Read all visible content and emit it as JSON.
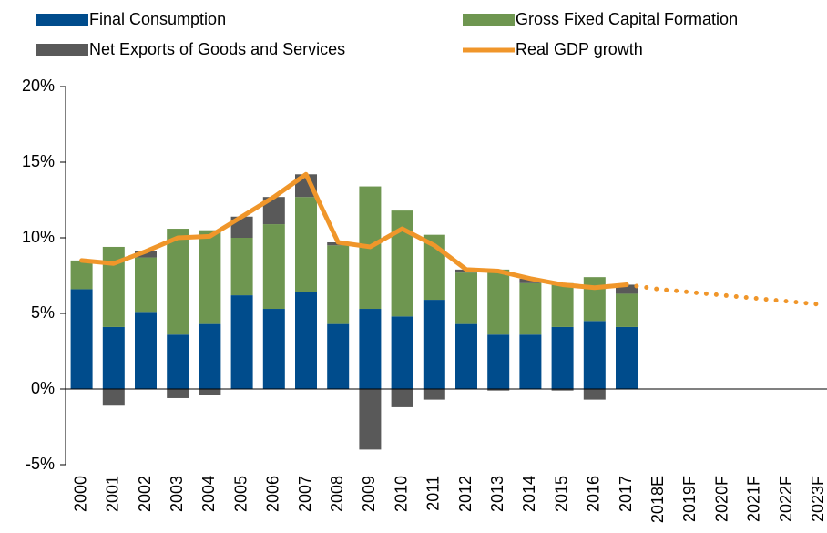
{
  "chart_data": {
    "type": "bar",
    "categories": [
      "2000",
      "2001",
      "2002",
      "2003",
      "2004",
      "2005",
      "2006",
      "2007",
      "2008",
      "2009",
      "2010",
      "2011",
      "2012",
      "2013",
      "2014",
      "2015",
      "2016",
      "2017",
      "2018E",
      "2019F",
      "2020F",
      "2021F",
      "2022F",
      "2023F"
    ],
    "series": [
      {
        "name": "Final Consumption",
        "color": "#004c8c",
        "values": [
          6.6,
          4.1,
          5.1,
          3.6,
          4.3,
          6.2,
          5.3,
          6.4,
          4.3,
          5.3,
          4.8,
          5.9,
          4.3,
          3.6,
          3.6,
          4.1,
          4.5,
          4.1,
          null,
          null,
          null,
          null,
          null,
          null
        ]
      },
      {
        "name": "Gross Fixed Capital Formation",
        "color": "#6e9650",
        "values": [
          1.9,
          5.3,
          3.6,
          7.0,
          6.2,
          3.8,
          5.6,
          6.3,
          5.2,
          8.1,
          7.0,
          4.3,
          3.4,
          4.3,
          3.4,
          2.9,
          2.9,
          2.2,
          null,
          null,
          null,
          null,
          null,
          null
        ]
      },
      {
        "name": "Net Exports of Goods and Services",
        "color": "#595959",
        "values": [
          0.0,
          -1.1,
          0.4,
          -0.6,
          -0.4,
          1.4,
          1.8,
          1.5,
          0.2,
          -4.0,
          -1.2,
          -0.7,
          0.2,
          -0.1,
          0.3,
          -0.1,
          -0.7,
          0.6,
          null,
          null,
          null,
          null,
          null,
          null
        ]
      },
      {
        "name": "Real GDP growth",
        "type": "line",
        "color": "#f0962a",
        "values": [
          8.5,
          8.3,
          9.1,
          10.0,
          10.1,
          11.4,
          12.7,
          14.2,
          9.7,
          9.4,
          10.6,
          9.5,
          7.9,
          7.8,
          7.3,
          6.9,
          6.7,
          6.9,
          6.6,
          6.4,
          6.2,
          6.0,
          5.8,
          5.6
        ]
      }
    ],
    "ylim": [
      -5,
      20
    ],
    "yticks": [
      {
        "value": -5,
        "label": "-5%"
      },
      {
        "value": 0,
        "label": "0%"
      },
      {
        "value": 5,
        "label": "5%"
      },
      {
        "value": 10,
        "label": "10%"
      },
      {
        "value": 15,
        "label": "15%"
      },
      {
        "value": 20,
        "label": "20%"
      }
    ],
    "grid": false
  }
}
